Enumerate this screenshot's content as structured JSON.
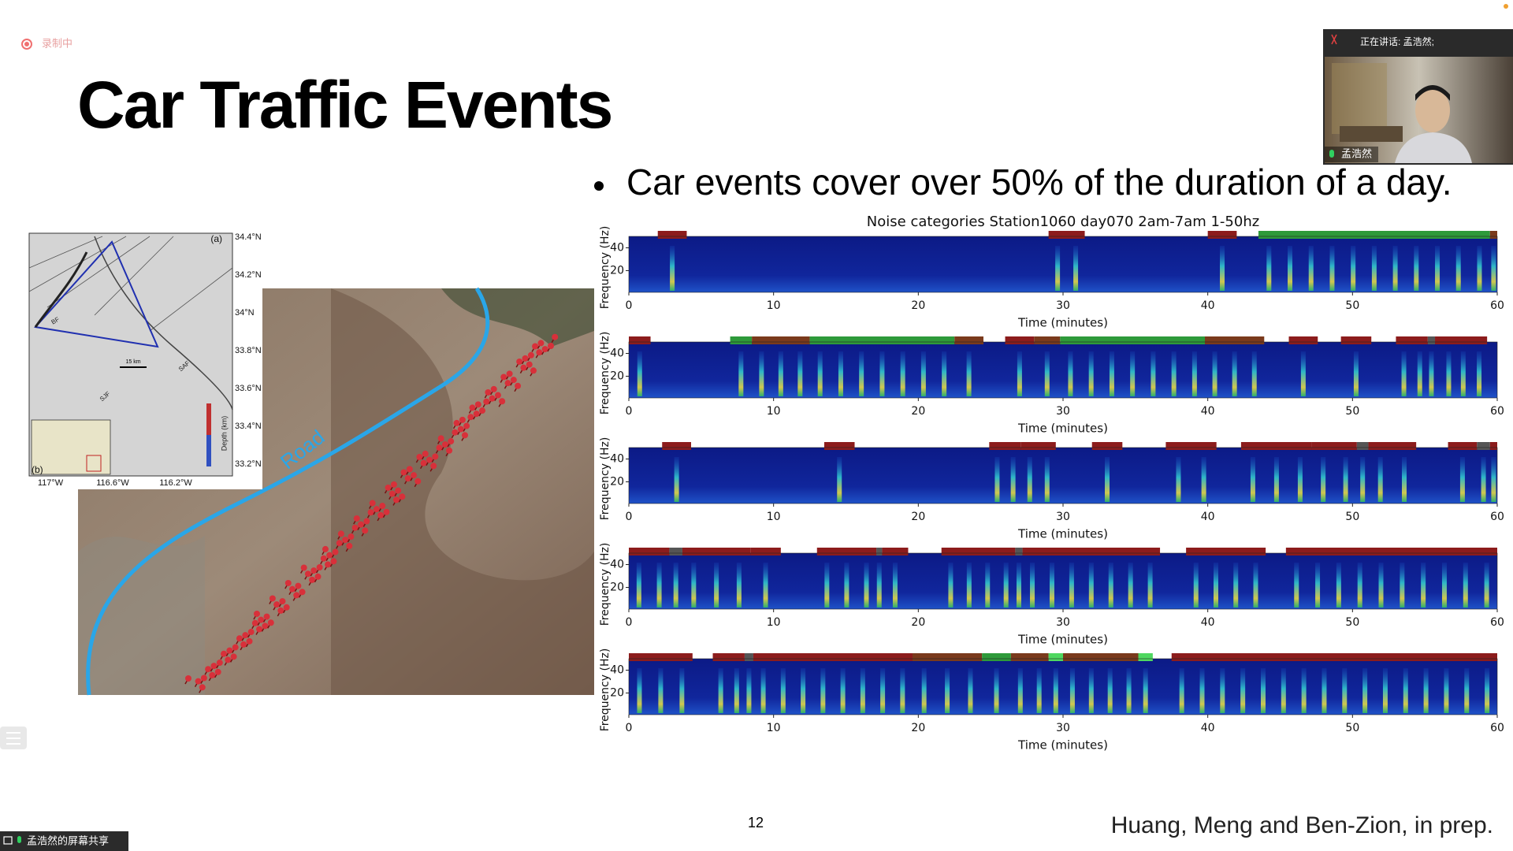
{
  "recording": "录制中",
  "title": "Car Traffic Events",
  "bullet": "Car events cover over 50% of the duration of a day.",
  "video": {
    "speaking": "正在讲话: 孟浩然;",
    "name": "孟浩然"
  },
  "map": {
    "lat_labels": [
      "34.4°N",
      "34.2°N",
      "34°N",
      "33.8°N",
      "33.6°N",
      "33.4°N",
      "33.2°N"
    ],
    "lon_labels": [
      "117°W",
      "116.6°W",
      "116.2°W"
    ],
    "panel_a": "(a)",
    "panel_b": "(b)",
    "faults": [
      "SAF",
      "SJF",
      "BF"
    ],
    "scale": "15 km",
    "depth_label": "Depth (km)",
    "road": "Road"
  },
  "spectrograms": {
    "title": "Noise categories  Station1060 day070  2am-7am 1-50hz",
    "xlabel": "Time (minutes)",
    "ylabel": "Frequency (Hz)",
    "xlim": [
      0,
      60
    ],
    "xticks": [
      0,
      10,
      20,
      30,
      40,
      50,
      60
    ],
    "ylim": [
      1,
      50
    ],
    "yticks": [
      20,
      40
    ],
    "panels": [
      {
        "segments": [
          {
            "start": 2,
            "end": 4,
            "color": "#8c1c1c"
          },
          {
            "start": 29,
            "end": 31.5,
            "color": "#8c1c1c"
          },
          {
            "start": 40,
            "end": 42,
            "color": "#8c1c1c"
          },
          {
            "start": 43.5,
            "end": 59.5,
            "color": "#2e9a3a"
          },
          {
            "start": 59.5,
            "end": 60,
            "color": "#7a3a1c"
          }
        ]
      },
      {
        "segments": [
          {
            "start": 0,
            "end": 1.5,
            "color": "#8c1c1c"
          },
          {
            "start": 7,
            "end": 8.5,
            "color": "#2e9a3a"
          },
          {
            "start": 8.5,
            "end": 12.5,
            "color": "#7a3a1c"
          },
          {
            "start": 12.5,
            "end": 22.5,
            "color": "#2e9a3a"
          },
          {
            "start": 22.5,
            "end": 24.5,
            "color": "#7a3a1c"
          },
          {
            "start": 26,
            "end": 28,
            "color": "#8c1c1c"
          },
          {
            "start": 28,
            "end": 29.8,
            "color": "#7a3a1c"
          },
          {
            "start": 29.8,
            "end": 39.8,
            "color": "#2e9a3a"
          },
          {
            "start": 39.8,
            "end": 43.9,
            "color": "#7a3a1c"
          },
          {
            "start": 45.6,
            "end": 47.6,
            "color": "#8c1c1c"
          },
          {
            "start": 49.2,
            "end": 51.3,
            "color": "#8c1c1c"
          },
          {
            "start": 53,
            "end": 55.2,
            "color": "#8c1c1c"
          },
          {
            "start": 55.2,
            "end": 55.7,
            "color": "#555555"
          },
          {
            "start": 55.7,
            "end": 57.6,
            "color": "#8c1c1c"
          },
          {
            "start": 57.1,
            "end": 59.3,
            "color": "#8c1c1c"
          }
        ]
      },
      {
        "segments": [
          {
            "start": 2.3,
            "end": 4.3,
            "color": "#8c1c1c"
          },
          {
            "start": 13.5,
            "end": 15.6,
            "color": "#8c1c1c"
          },
          {
            "start": 24.9,
            "end": 27.1,
            "color": "#8c1c1c"
          },
          {
            "start": 27.1,
            "end": 29.5,
            "color": "#8c1c1c"
          },
          {
            "start": 32,
            "end": 34.1,
            "color": "#8c1c1c"
          },
          {
            "start": 37.1,
            "end": 40.6,
            "color": "#8c1c1c"
          },
          {
            "start": 42.3,
            "end": 47.2,
            "color": "#8c1c1c"
          },
          {
            "start": 47.2,
            "end": 50.3,
            "color": "#8c1c1c"
          },
          {
            "start": 50.3,
            "end": 51.1,
            "color": "#555555"
          },
          {
            "start": 51.1,
            "end": 54.4,
            "color": "#8c1c1c"
          },
          {
            "start": 56.6,
            "end": 58.6,
            "color": "#8c1c1c"
          },
          {
            "start": 58.6,
            "end": 59.5,
            "color": "#555555"
          },
          {
            "start": 59.5,
            "end": 60,
            "color": "#8c1c1c"
          }
        ]
      },
      {
        "segments": [
          {
            "start": 0,
            "end": 2.8,
            "color": "#8c1c1c"
          },
          {
            "start": 2.8,
            "end": 3.7,
            "color": "#555555"
          },
          {
            "start": 3.7,
            "end": 8.4,
            "color": "#8c1c1c"
          },
          {
            "start": 8.4,
            "end": 10.5,
            "color": "#8c1c1c"
          },
          {
            "start": 13,
            "end": 17.1,
            "color": "#8c1c1c"
          },
          {
            "start": 17.1,
            "end": 17.5,
            "color": "#555555"
          },
          {
            "start": 17.5,
            "end": 19.3,
            "color": "#8c1c1c"
          },
          {
            "start": 21.6,
            "end": 26.7,
            "color": "#8c1c1c"
          },
          {
            "start": 26.7,
            "end": 27.2,
            "color": "#555555"
          },
          {
            "start": 27.2,
            "end": 36.7,
            "color": "#8c1c1c"
          },
          {
            "start": 38.5,
            "end": 44,
            "color": "#8c1c1c"
          },
          {
            "start": 45.4,
            "end": 60,
            "color": "#8c1c1c"
          }
        ]
      },
      {
        "segments": [
          {
            "start": 0,
            "end": 4.4,
            "color": "#8c1c1c"
          },
          {
            "start": 5.8,
            "end": 8,
            "color": "#8c1c1c"
          },
          {
            "start": 8,
            "end": 8.6,
            "color": "#555555"
          },
          {
            "start": 8.6,
            "end": 19.6,
            "color": "#8c1c1c"
          },
          {
            "start": 19.6,
            "end": 24.4,
            "color": "#7a3a1c"
          },
          {
            "start": 24.4,
            "end": 26.4,
            "color": "#2e9a3a"
          },
          {
            "start": 26.4,
            "end": 29,
            "color": "#7a3a1c"
          },
          {
            "start": 29,
            "end": 30,
            "color": "#4fd860"
          },
          {
            "start": 30,
            "end": 35.2,
            "color": "#7a3a1c"
          },
          {
            "start": 35.2,
            "end": 36.2,
            "color": "#4fd860"
          },
          {
            "start": 37.5,
            "end": 60,
            "color": "#8c1c1c"
          }
        ]
      }
    ]
  },
  "page_number": "12",
  "citation": "Huang, Meng and Ben-Zion, in prep.",
  "share": "孟浩然的屏幕共享"
}
